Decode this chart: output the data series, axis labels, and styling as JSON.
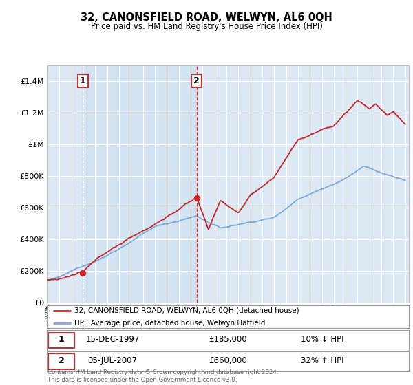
{
  "title": "32, CANONSFIELD ROAD, WELWYN, AL6 0QH",
  "subtitle": "Price paid vs. HM Land Registry's House Price Index (HPI)",
  "legend_line1": "32, CANONSFIELD ROAD, WELWYN, AL6 0QH (detached house)",
  "legend_line2": "HPI: Average price, detached house, Welwyn Hatfield",
  "transaction1_date": "15-DEC-1997",
  "transaction1_price": "£185,000",
  "transaction1_pct": "10% ↓ HPI",
  "transaction1_year": 1997.96,
  "transaction1_value": 185000,
  "transaction2_date": "05-JUL-2007",
  "transaction2_price": "£660,000",
  "transaction2_pct": "32% ↑ HPI",
  "transaction2_year": 2007.51,
  "transaction2_value": 660000,
  "footer": "Contains HM Land Registry data © Crown copyright and database right 2024.\nThis data is licensed under the Open Government Licence v3.0.",
  "ylim_max": 1500000,
  "plot_bg": "#dce9f5",
  "red_color": "#cc2222",
  "blue_color": "#7aaadd",
  "grid_color": "#ffffff",
  "vline1_color": "#aaaaaa",
  "vline2_color": "#cc2222"
}
